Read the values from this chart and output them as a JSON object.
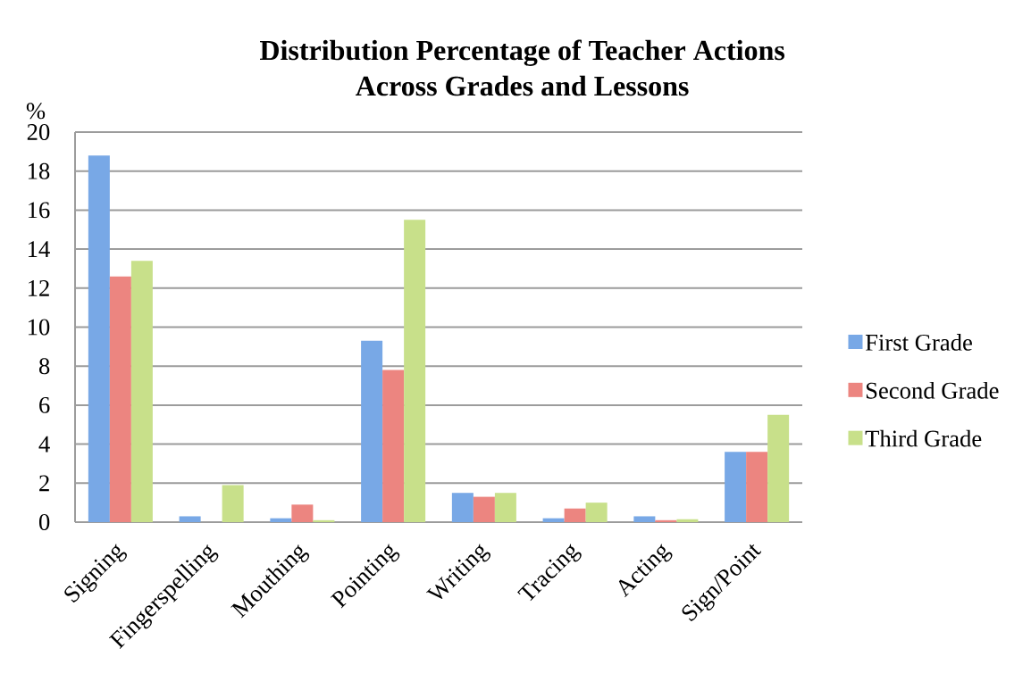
{
  "chart_data": {
    "type": "bar",
    "title": "Distribution Percentage of Teacher Actions Across Grades and Lessons",
    "ylabel": "%",
    "categories": [
      "Signing",
      "Fingerspelling",
      "Mouthing",
      "Pointing",
      "Writing",
      "Tracing",
      "Acting",
      "Sign/Point"
    ],
    "series": [
      {
        "name": "First Grade",
        "color": "#78a8e6",
        "values": [
          18.8,
          0.3,
          0.2,
          9.3,
          1.5,
          0.2,
          0.3,
          3.6
        ]
      },
      {
        "name": "Second Grade",
        "color": "#ec8580",
        "values": [
          12.6,
          0,
          0.9,
          7.8,
          1.3,
          0.7,
          0.1,
          3.6
        ]
      },
      {
        "name": "Third Grade",
        "color": "#c8e08a",
        "values": [
          13.4,
          1.9,
          0.1,
          15.5,
          1.5,
          1.0,
          0.15,
          5.5
        ]
      }
    ],
    "ylim": [
      0,
      20
    ],
    "yticks": [
      0,
      2,
      4,
      6,
      8,
      10,
      12,
      14,
      16,
      18,
      20
    ],
    "grid": "y",
    "legend": "right"
  }
}
